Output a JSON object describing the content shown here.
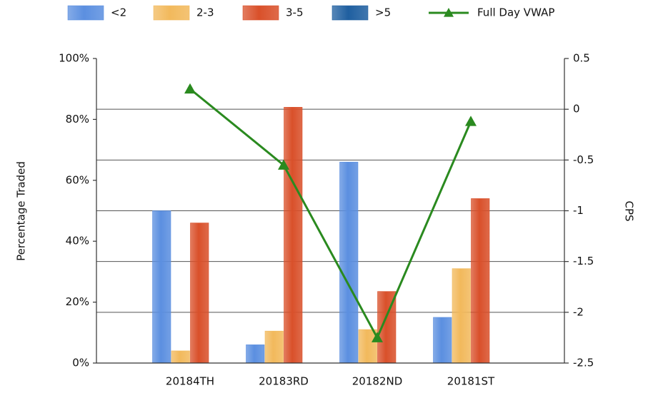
{
  "chart_data": {
    "type": "bar",
    "categories": [
      "20184TH",
      "20183RD",
      "20182ND",
      "20181ST"
    ],
    "series": [
      {
        "name": "<2",
        "color": "#5b8fe0",
        "values": [
          50,
          6,
          66,
          15
        ]
      },
      {
        "name": "2-3",
        "color": "#f2b95c",
        "values": [
          4,
          10.5,
          11,
          31
        ]
      },
      {
        "name": "3-5",
        "color": "#d9502a",
        "values": [
          46,
          84,
          23.5,
          54
        ]
      },
      {
        "name": ">5",
        "color": "#1f5fa0",
        "values": [
          null,
          null,
          null,
          null
        ]
      },
      {
        "name": "Full Day VWAP",
        "type": "line",
        "axis": "y2",
        "color": "#2a8a1f",
        "values": [
          0.2,
          -0.55,
          -2.25,
          -0.12
        ]
      }
    ],
    "ylabel": "Percentage Traded",
    "y2label": "CPS",
    "ylim": [
      0,
      100
    ],
    "yticks": [
      {
        "value": 0,
        "label": "0%"
      },
      {
        "value": 20,
        "label": "20%"
      },
      {
        "value": 40,
        "label": "40%"
      },
      {
        "value": 60,
        "label": "60%"
      },
      {
        "value": 80,
        "label": "80%"
      },
      {
        "value": 100,
        "label": "100%"
      }
    ],
    "y2lim": [
      -2.5,
      0.5
    ],
    "y2ticks": [
      0.5,
      0,
      -0.5,
      -1,
      -1.5,
      -2,
      -2.5
    ],
    "grid": "y2",
    "legend": "top"
  }
}
